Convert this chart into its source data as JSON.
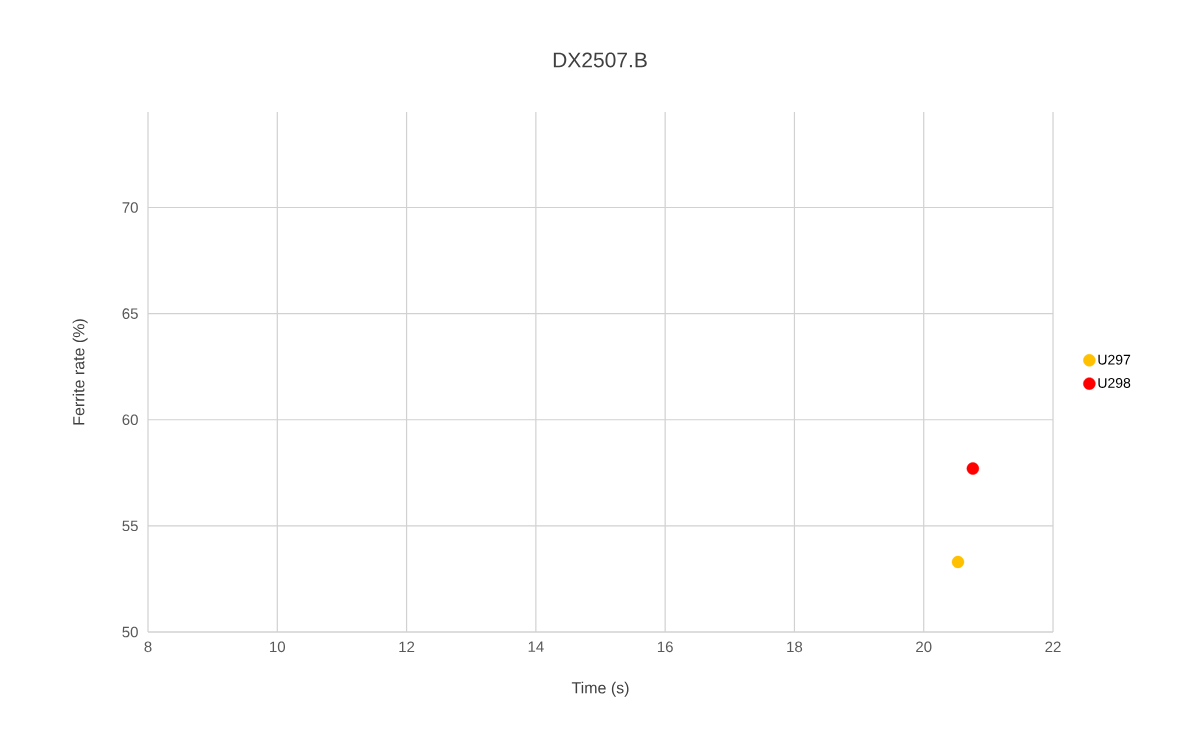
{
  "chart_data": {
    "type": "scatter",
    "title": "DX2507.B",
    "xlabel": "Time (s)",
    "ylabel": "Ferrite rate (%)",
    "xlim": [
      8,
      22
    ],
    "xticks": [
      8,
      10,
      12,
      14,
      16,
      18,
      20,
      22
    ],
    "ylim": [
      50,
      74.5
    ],
    "yticks": [
      50,
      55,
      60,
      65,
      70
    ],
    "grid": true,
    "legend": "right",
    "marker": "circle",
    "series": [
      {
        "name": "U297",
        "color": "#ffc000",
        "x": [
          20.53
        ],
        "values": [
          53.3
        ]
      },
      {
        "name": "U298",
        "color": "#ff0000",
        "x": [
          20.76
        ],
        "values": [
          57.7
        ]
      }
    ]
  }
}
